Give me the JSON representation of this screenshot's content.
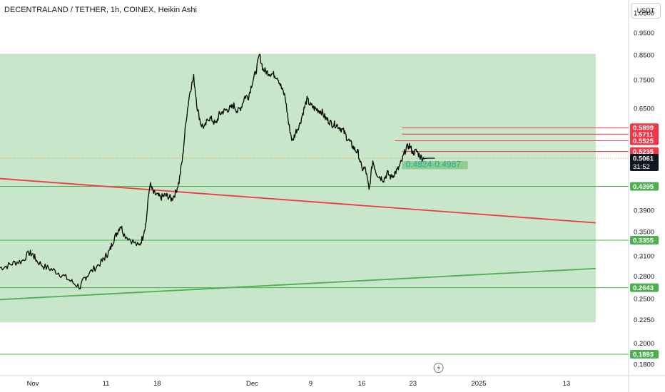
{
  "header": {
    "title": "DECENTRALAND / TETHER, 1h, COINEX, Heikin Ashi",
    "currency_button": "USDT"
  },
  "chart_data": {
    "type": "line",
    "title": "DECENTRALAND / TETHER, 1h, COINEX, Heikin Ashi",
    "y_scale": "log",
    "price_ticks": [
      "1.0500",
      "0.9500",
      "0.8500",
      "0.7500",
      "0.6500",
      "0.4395",
      "0.3900",
      "0.3500",
      "0.3100",
      "0.2800",
      "0.2500",
      "0.2250",
      "0.2000",
      "0.1800"
    ],
    "x_ticks": [
      {
        "label": "Nov",
        "day": 0
      },
      {
        "label": "11",
        "day": 10
      },
      {
        "label": "18",
        "day": 17
      },
      {
        "label": "Dec",
        "day": 30
      },
      {
        "label": "9",
        "day": 38
      },
      {
        "label": "16",
        "day": 45
      },
      {
        "label": "23",
        "day": 52
      },
      {
        "label": "2025",
        "day": 61
      },
      {
        "label": "13",
        "day": 73
      }
    ],
    "x_range_days": [
      -4.5,
      81.5
    ],
    "y_range": [
      0.17,
      1.12
    ],
    "price_series": {
      "x": [
        -4.5,
        -3.5,
        -2.5,
        -1.5,
        -0.5,
        0,
        0.5,
        1.5,
        2.5,
        3.5,
        4.5,
        5.5,
        6.5,
        7,
        7.5,
        8.5,
        9.5,
        10,
        10.5,
        11,
        11.5,
        12,
        12.5,
        13.5,
        14.5,
        15,
        15.5,
        16,
        16.5,
        17,
        17.5,
        18,
        18.5,
        19,
        19.5,
        20,
        20.5,
        21,
        21.5,
        22,
        22.5,
        23,
        23.5,
        24,
        24.5,
        25,
        25.5,
        26,
        26.5,
        27,
        27.5,
        28,
        28.5,
        29,
        29.5,
        30,
        30.5,
        31,
        31.5,
        32,
        32.5,
        33,
        33.5,
        34,
        34.5,
        35,
        35.5,
        36,
        36.5,
        37,
        37.5,
        38,
        38.5,
        39,
        39.5,
        40,
        40.5,
        41,
        41.5,
        42,
        42.5,
        43,
        43.5,
        44,
        44.5,
        45,
        45.5,
        46,
        46.5,
        47,
        47.5,
        48,
        48.5,
        49,
        49.5,
        50,
        50.5,
        51,
        51.5,
        52,
        52.5,
        53,
        53.5,
        54,
        54.5,
        55
      ],
      "y": [
        0.292,
        0.295,
        0.3,
        0.302,
        0.315,
        0.312,
        0.303,
        0.294,
        0.29,
        0.285,
        0.278,
        0.271,
        0.265,
        0.276,
        0.282,
        0.292,
        0.302,
        0.31,
        0.318,
        0.335,
        0.348,
        0.362,
        0.345,
        0.335,
        0.325,
        0.34,
        0.368,
        0.445,
        0.425,
        0.42,
        0.415,
        0.42,
        0.418,
        0.412,
        0.425,
        0.45,
        0.51,
        0.62,
        0.71,
        0.76,
        0.65,
        0.6,
        0.59,
        0.62,
        0.615,
        0.6,
        0.63,
        0.64,
        0.645,
        0.65,
        0.66,
        0.64,
        0.655,
        0.69,
        0.69,
        0.74,
        0.78,
        0.85,
        0.79,
        0.78,
        0.775,
        0.77,
        0.76,
        0.72,
        0.69,
        0.6,
        0.55,
        0.58,
        0.6,
        0.64,
        0.68,
        0.66,
        0.65,
        0.645,
        0.64,
        0.62,
        0.61,
        0.6,
        0.6,
        0.59,
        0.58,
        0.56,
        0.545,
        0.53,
        0.52,
        0.48,
        0.48,
        0.43,
        0.5,
        0.47,
        0.46,
        0.455,
        0.47,
        0.46,
        0.47,
        0.48,
        0.5,
        0.53,
        0.54,
        0.52,
        0.525,
        0.51,
        0.505,
        0.5061,
        0.5061,
        0.5061
      ]
    },
    "zone_box": {
      "x_start_day": -4.5,
      "x_end_day": 77,
      "y_top": 0.855,
      "y_bottom": 0.222,
      "color": "#c8e6c9"
    },
    "zone_label": "0.4824-0.4987",
    "zone_label_box": {
      "y_top": 0.4987,
      "y_bottom": 0.4824,
      "color": "#81c784"
    },
    "resistance_lines": [
      {
        "price": 0.5899,
        "label": "0.5899",
        "color": "#f23645"
      },
      {
        "price": 0.5711,
        "label": "0.5711",
        "color": "#f23645"
      },
      {
        "price": 0.5525,
        "label": "0.5525",
        "color": "#f23645"
      },
      {
        "price": 0.5235,
        "label": "0.5235",
        "color": "#f23645"
      }
    ],
    "support_lines": [
      {
        "price": 0.4395,
        "label": "0.4395",
        "color": "#4caf50"
      },
      {
        "price": 0.3355,
        "label": "0.3355",
        "color": "#4caf50"
      },
      {
        "price": 0.2643,
        "label": "0.2643",
        "color": "#4caf50"
      },
      {
        "price": 0.1893,
        "label": "0.1893",
        "color": "#4caf50"
      }
    ],
    "trendlines": [
      {
        "name": "descending",
        "x1": -4.5,
        "y1": 0.457,
        "x2": 77,
        "y2": 0.366,
        "color": "#f23645"
      },
      {
        "name": "ascending",
        "x1": -4.5,
        "y1": 0.249,
        "x2": 77,
        "y2": 0.291,
        "color": "#4caf50"
      }
    ],
    "current_price": {
      "value": 0.5061,
      "label": "0.5061",
      "countdown": "31:52",
      "color": "#131722"
    }
  }
}
